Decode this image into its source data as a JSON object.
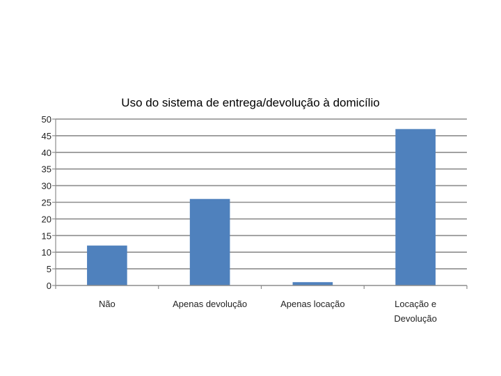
{
  "chart_data": {
    "type": "bar",
    "title": "Uso do sistema de entrega/devolução à domicílio",
    "categories": [
      [
        "Não"
      ],
      [
        "Apenas devolução"
      ],
      [
        "Apenas locação"
      ],
      [
        "Locação e",
        "Devolução"
      ]
    ],
    "values": [
      12,
      26,
      1,
      47
    ],
    "ylim": [
      0,
      50
    ],
    "yticks": [
      0,
      5,
      10,
      15,
      20,
      25,
      30,
      35,
      40,
      45,
      50
    ],
    "grid": true,
    "bar_color": "#4F81BD",
    "grid_color": "#8C8C8C"
  }
}
